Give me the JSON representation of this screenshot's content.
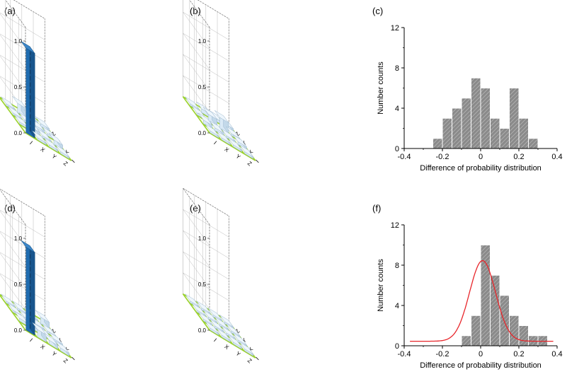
{
  "panel_labels": [
    "(a)",
    "(b)",
    "(c)",
    "(d)",
    "(e)",
    "(f)"
  ],
  "chart_data": [
    {
      "id": "a",
      "type": "bar3d",
      "z_ticks": [
        "0.0",
        "0.5",
        "1.0"
      ],
      "zlim": [
        0,
        1
      ],
      "row_labels": [
        "I",
        "X",
        "Y",
        "Z"
      ],
      "col_labels": [
        "I",
        "X",
        "Y",
        "Z"
      ],
      "values": [
        [
          0.92,
          0.02,
          0.02,
          0.02
        ],
        [
          0.02,
          0.04,
          0.02,
          0.1
        ],
        [
          0.02,
          0.02,
          0.03,
          0.03
        ],
        [
          0.02,
          0.05,
          0.02,
          0.03
        ]
      ]
    },
    {
      "id": "b",
      "type": "bar3d",
      "z_ticks": [
        "0.0",
        "0.5",
        "1.0"
      ],
      "zlim": [
        0,
        1
      ],
      "row_labels": [
        "I",
        "X",
        "Y",
        "Z"
      ],
      "col_labels": [
        "I",
        "X",
        "Y",
        "Z"
      ],
      "values": [
        [
          0.02,
          0.04,
          0.02,
          0.02
        ],
        [
          0.02,
          0.03,
          0.08,
          0.04
        ],
        [
          0.02,
          0.02,
          0.12,
          0.03
        ],
        [
          0.02,
          0.03,
          0.02,
          0.03
        ]
      ]
    },
    {
      "id": "c",
      "type": "bar",
      "xlabel": "Difference of probability distribution",
      "ylabel": "Number counts",
      "xlim": [
        -0.4,
        0.4
      ],
      "ylim": [
        0,
        12
      ],
      "x_ticks": [
        "-0.4",
        "-0.2",
        "0",
        "0.2",
        "0.4"
      ],
      "y_ticks": [
        "0",
        "4",
        "8",
        "12"
      ],
      "bin_width": 0.05,
      "bin_starts": [
        -0.25,
        -0.2,
        -0.15,
        -0.1,
        -0.05,
        0.0,
        0.05,
        0.1,
        0.15,
        0.2,
        0.25
      ],
      "values": [
        1,
        3,
        4,
        5,
        7,
        6,
        3,
        2,
        6,
        3,
        1
      ]
    },
    {
      "id": "d",
      "type": "bar3d",
      "z_ticks": [
        "0.0",
        "0.5",
        "1.0"
      ],
      "zlim": [
        0,
        1
      ],
      "row_labels": [
        "I",
        "X",
        "Y",
        "Z"
      ],
      "col_labels": [
        "I",
        "X",
        "Y",
        "Z"
      ],
      "values": [
        [
          0.9,
          0.03,
          0.02,
          0.02
        ],
        [
          0.08,
          0.03,
          0.02,
          0.02
        ],
        [
          0.04,
          0.02,
          0.02,
          0.02
        ],
        [
          0.03,
          0.03,
          0.02,
          0.07
        ]
      ]
    },
    {
      "id": "e",
      "type": "bar3d",
      "z_ticks": [
        "0.0",
        "0.5",
        "1.0"
      ],
      "zlim": [
        0,
        1
      ],
      "row_labels": [
        "I",
        "X",
        "Y",
        "Z"
      ],
      "col_labels": [
        "I",
        "X",
        "Y",
        "Z"
      ],
      "values": [
        [
          0.02,
          0.02,
          0.02,
          0.02
        ],
        [
          0.02,
          0.02,
          0.02,
          0.02
        ],
        [
          0.02,
          0.02,
          0.02,
          0.02
        ],
        [
          0.02,
          0.02,
          0.02,
          0.02
        ]
      ]
    },
    {
      "id": "f",
      "type": "bar",
      "xlabel": "Difference of probability distribution",
      "ylabel": "Number counts",
      "xlim": [
        -0.4,
        0.4
      ],
      "ylim": [
        0,
        12
      ],
      "x_ticks": [
        "-0.4",
        "-0.2",
        "0",
        "0.2",
        "0.4"
      ],
      "y_ticks": [
        "0",
        "4",
        "8",
        "12"
      ],
      "bin_width": 0.05,
      "bin_starts": [
        -0.1,
        -0.05,
        0.0,
        0.05,
        0.1,
        0.15,
        0.2,
        0.25,
        0.3
      ],
      "values": [
        1,
        3,
        10,
        7,
        5,
        3,
        2,
        1,
        1
      ],
      "fit": {
        "type": "gaussian",
        "color": "#e8262b",
        "amplitude": 8.0,
        "center": 0.01,
        "sigma": 0.068,
        "offset": 0.45
      }
    }
  ],
  "colors": {
    "big_bar": "#1f6cb0",
    "small_bar": "#daeaf6",
    "floor_line": "#9bd22d",
    "hist_fill": "#8a8a8a",
    "fit": "#e8262b"
  }
}
